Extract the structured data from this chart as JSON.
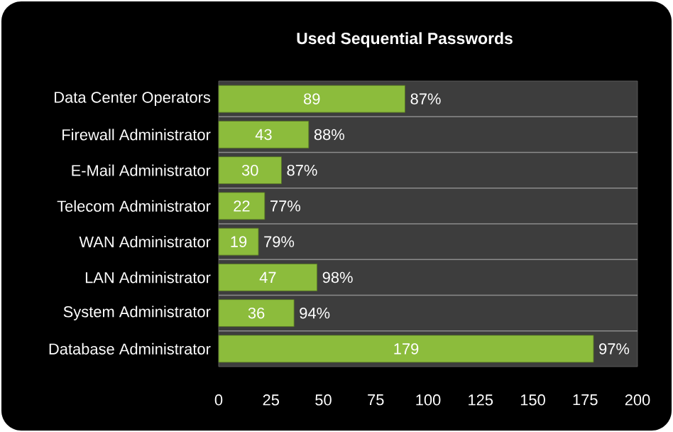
{
  "chart_data": {
    "type": "bar",
    "orientation": "horizontal",
    "title": "Used Sequential Passwords",
    "categories": [
      "Data Center Operators",
      "Firewall Administrator",
      "E-Mail Administrator",
      "Telecom Administrator",
      "WAN Administrator",
      "LAN Administrator",
      "System Administrator",
      "Database Administrator"
    ],
    "values": [
      89,
      43,
      30,
      22,
      19,
      47,
      36,
      179
    ],
    "color": "#8cbc3c",
    "xlim": [
      0,
      200
    ],
    "xticks": [
      0,
      25,
      50,
      75,
      100,
      125,
      150,
      175,
      200
    ],
    "data_labels": true,
    "grid": "y",
    "annotations": [
      {
        "text": "87%",
        "x": 89,
        "y": "Data Center Operators"
      },
      {
        "text": "88%",
        "x": 43,
        "y": "Firewall Administrator"
      },
      {
        "text": "87%",
        "x": 30,
        "y": "E-Mail Administrator"
      },
      {
        "text": "77%",
        "x": 22,
        "y": "Telecom Administrator"
      },
      {
        "text": "79%",
        "x": 19,
        "y": "WAN Administrator"
      },
      {
        "text": "98%",
        "x": 47,
        "y": "LAN Administrator"
      },
      {
        "text": "94%",
        "x": 36,
        "y": "System Administrator"
      },
      {
        "text": "97%",
        "x": 179,
        "y": "Database Administrator"
      }
    ]
  }
}
